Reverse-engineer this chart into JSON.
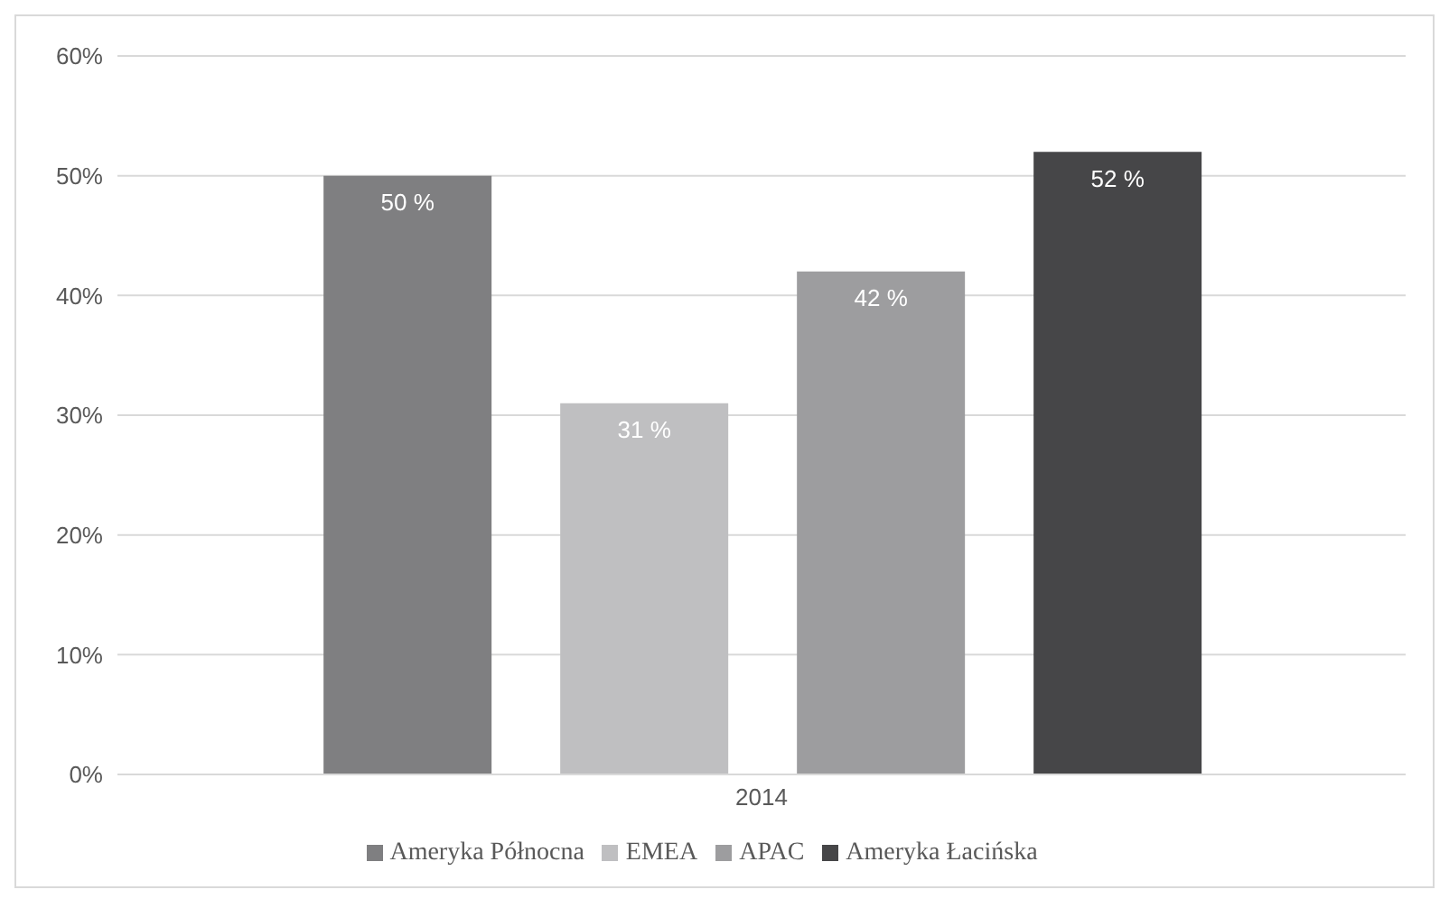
{
  "chart_data": {
    "type": "bar",
    "categories": [
      "2014"
    ],
    "series": [
      {
        "name": "Ameryka Północna",
        "color": "#7f7f81",
        "values": [
          50
        ],
        "value_labels": [
          "50 %"
        ]
      },
      {
        "name": "EMEA",
        "color": "#bfbfc1",
        "values": [
          31
        ],
        "value_labels": [
          "31 %"
        ]
      },
      {
        "name": "APAC",
        "color": "#9d9d9f",
        "values": [
          42
        ],
        "value_labels": [
          "42 %"
        ]
      },
      {
        "name": "Ameryka Łacińska",
        "color": "#464648",
        "values": [
          52
        ],
        "value_labels": [
          "52 %"
        ]
      }
    ],
    "ylim": [
      0,
      60
    ],
    "yticks": [
      {
        "value": 0,
        "label": "0%"
      },
      {
        "value": 10,
        "label": "10%"
      },
      {
        "value": 20,
        "label": "20%"
      },
      {
        "value": 30,
        "label": "30%"
      },
      {
        "value": 40,
        "label": "40%"
      },
      {
        "value": 50,
        "label": "50%"
      },
      {
        "value": 60,
        "label": "60%"
      }
    ],
    "grid": "y",
    "legend": "bottom"
  }
}
